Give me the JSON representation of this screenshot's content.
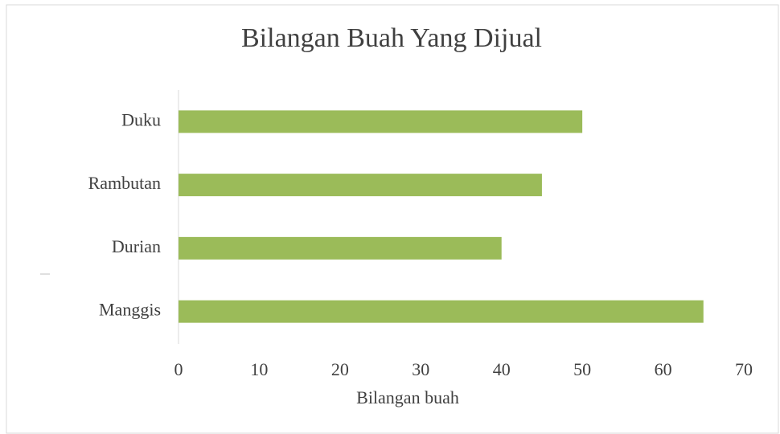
{
  "chart_data": {
    "type": "bar",
    "orientation": "horizontal",
    "title": "Bilangan Buah Yang Dijual",
    "xlabel": "Bilangan buah",
    "categories": [
      "Duku",
      "Rambutan",
      "Durian",
      "Manggis"
    ],
    "values": [
      50,
      45,
      40,
      65
    ],
    "color": "#9bbb59",
    "xlim": [
      0,
      70
    ],
    "xticks": [
      0,
      10,
      20,
      30,
      40,
      50,
      60,
      70
    ],
    "grid": false
  }
}
